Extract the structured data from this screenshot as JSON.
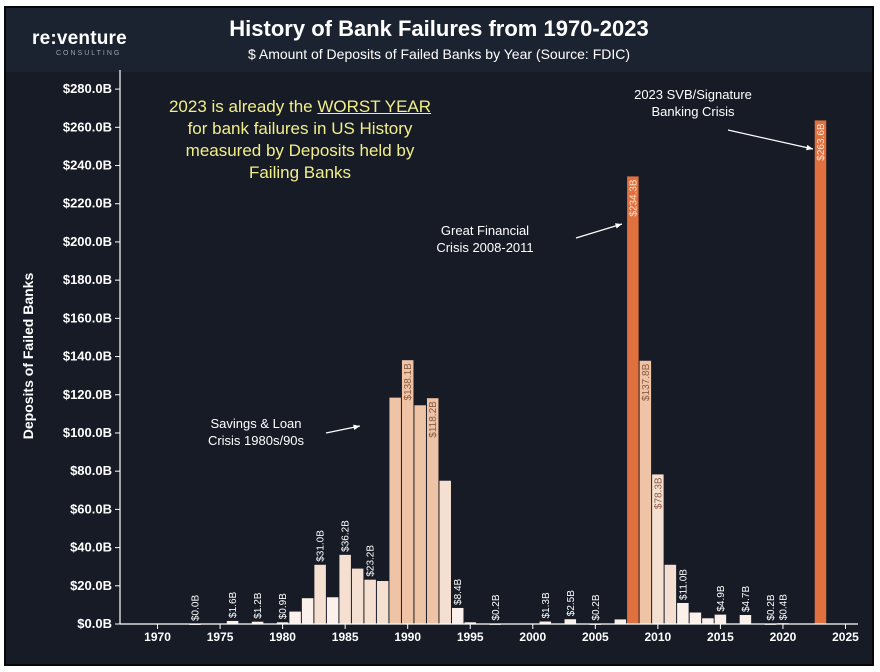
{
  "header": {
    "logo": "re:venture",
    "logo_sub": "CONSULTING",
    "title": "History of Bank Failures from 1970-2023",
    "subtitle": "$ Amount of Deposits of Failed Banks by Year (Source: FDIC)"
  },
  "colors": {
    "background": "#161b26",
    "highlight": "#e0703e",
    "high": "#efc3a6",
    "mid": "#f5dfd0",
    "low": "#fbf1ea",
    "callout_yellow": "#f2ef8a"
  },
  "annotations": {
    "worst_line1_pre": "2023 is already the ",
    "worst_line1_emph": "WORST YEAR",
    "worst_line2": "for bank failures in US History",
    "worst_line3": "measured by Deposits held by",
    "worst_line4": "Failing Banks",
    "sl_line1": "Savings & Loan",
    "sl_line2": "Crisis 1980s/90s",
    "gfc_line1": "Great Financial",
    "gfc_line2": "Crisis 2008-2011",
    "svb_line1": "2023 SVB/Signature",
    "svb_line2": "Banking Crisis"
  },
  "chart_data": {
    "type": "bar",
    "title": "History of Bank Failures from 1970-2023",
    "subtitle": "$ Amount of Deposits of Failed Banks by Year (Source: FDIC)",
    "ylabel": "Deposits of Failed Banks",
    "xlabel": "",
    "ylim": [
      0,
      290
    ],
    "xlim": [
      1967,
      2026
    ],
    "y_ticks": [
      0,
      20,
      40,
      60,
      80,
      100,
      120,
      140,
      160,
      180,
      200,
      220,
      240,
      260,
      280
    ],
    "y_tick_labels": [
      "$0.0B",
      "$20.0B",
      "$40.0B",
      "$60.0B",
      "$80.0B",
      "$100.0B",
      "$120.0B",
      "$140.0B",
      "$160.0B",
      "$180.0B",
      "$200.0B",
      "$220.0B",
      "$240.0B",
      "$260.0B",
      "$280.0B"
    ],
    "x_ticks": [
      1970,
      1975,
      1980,
      1985,
      1990,
      1995,
      2000,
      2005,
      2010,
      2015,
      2020,
      2025
    ],
    "grid": false,
    "legend": "none",
    "bars": [
      {
        "year": 1973,
        "value": 0.0,
        "label": "$0.0B"
      },
      {
        "year": 1976,
        "value": 1.6,
        "label": "$1.6B"
      },
      {
        "year": 1978,
        "value": 1.2,
        "label": "$1.2B"
      },
      {
        "year": 1980,
        "value": 0.9,
        "label": "$0.9B"
      },
      {
        "year": 1981,
        "value": 6.5,
        "label": ""
      },
      {
        "year": 1982,
        "value": 13.5,
        "label": ""
      },
      {
        "year": 1983,
        "value": 31.0,
        "label": "$31.0B"
      },
      {
        "year": 1984,
        "value": 14.0,
        "label": ""
      },
      {
        "year": 1985,
        "value": 36.2,
        "label": "$36.2B"
      },
      {
        "year": 1986,
        "value": 29.0,
        "label": ""
      },
      {
        "year": 1987,
        "value": 23.2,
        "label": "$23.2B"
      },
      {
        "year": 1988,
        "value": 22.5,
        "label": ""
      },
      {
        "year": 1989,
        "value": 118.5,
        "label": ""
      },
      {
        "year": 1990,
        "value": 138.1,
        "label": "$138.1B"
      },
      {
        "year": 1991,
        "value": 114.5,
        "label": ""
      },
      {
        "year": 1992,
        "value": 118.2,
        "label": "$118.2B"
      },
      {
        "year": 1993,
        "value": 75.0,
        "label": ""
      },
      {
        "year": 1994,
        "value": 8.4,
        "label": "$8.4B"
      },
      {
        "year": 1995,
        "value": 0.9,
        "label": ""
      },
      {
        "year": 1997,
        "value": 0.2,
        "label": "$0.2B"
      },
      {
        "year": 2001,
        "value": 1.3,
        "label": "$1.3B"
      },
      {
        "year": 2003,
        "value": 2.5,
        "label": "$2.5B"
      },
      {
        "year": 2005,
        "value": 0.2,
        "label": "$0.2B"
      },
      {
        "year": 2007,
        "value": 2.4,
        "label": ""
      },
      {
        "year": 2008,
        "value": 234.3,
        "label": "$234.3B"
      },
      {
        "year": 2009,
        "value": 137.8,
        "label": "$137.8B"
      },
      {
        "year": 2010,
        "value": 78.3,
        "label": "$78.3B"
      },
      {
        "year": 2011,
        "value": 31.0,
        "label": ""
      },
      {
        "year": 2012,
        "value": 11.0,
        "label": "$11.0B"
      },
      {
        "year": 2013,
        "value": 6.0,
        "label": ""
      },
      {
        "year": 2014,
        "value": 3.0,
        "label": ""
      },
      {
        "year": 2015,
        "value": 4.9,
        "label": "$4.9B"
      },
      {
        "year": 2017,
        "value": 4.7,
        "label": "$4.7B"
      },
      {
        "year": 2019,
        "value": 0.2,
        "label": "$0.2B"
      },
      {
        "year": 2020,
        "value": 0.4,
        "label": "$0.4B"
      },
      {
        "year": 2023,
        "value": 263.6,
        "label": "$263.6B"
      }
    ]
  }
}
